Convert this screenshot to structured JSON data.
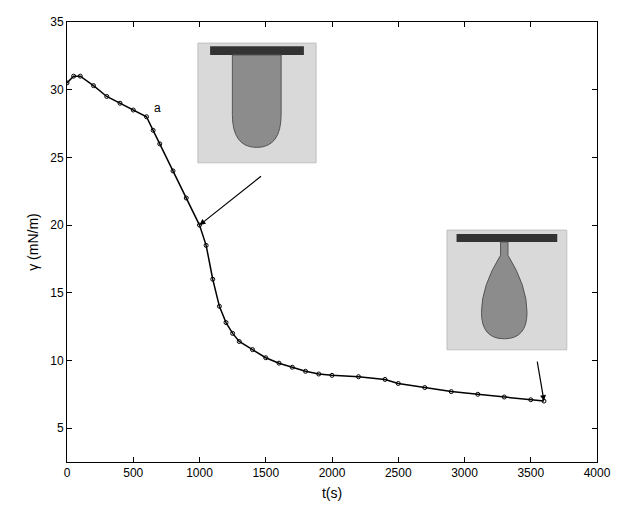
{
  "chart_data": {
    "type": "scatter",
    "x_label": "t(s)",
    "y_label": "γ (mN/m)",
    "x": [
      0,
      50,
      100,
      200,
      300,
      400,
      500,
      600,
      650,
      700,
      800,
      900,
      1000,
      1050,
      1100,
      1150,
      1200,
      1250,
      1300,
      1400,
      1500,
      1600,
      1700,
      1800,
      1900,
      2000,
      2200,
      2400,
      2500,
      2700,
      2900,
      3100,
      3300,
      3500,
      3600
    ],
    "series": [
      {
        "color": "#000000",
        "marker": "circle-open",
        "line_style": "solid",
        "values": [
          30.5,
          31,
          31,
          30.3,
          29.5,
          29,
          28.5,
          28,
          27,
          26,
          24,
          22,
          20,
          18.5,
          16,
          14,
          12.8,
          12,
          11.4,
          10.8,
          10.2,
          9.8,
          9.5,
          9.2,
          9,
          8.9,
          8.8,
          8.6,
          8.3,
          8,
          7.7,
          7.5,
          7.3,
          7.1,
          7.0
        ]
      }
    ],
    "xlim": [
      0,
      4000
    ],
    "xticks": [
      0,
      500,
      1000,
      1500,
      2000,
      2500,
      3000,
      3500,
      4000
    ],
    "ylim": [
      2.5,
      35
    ],
    "yticks": [
      5,
      10,
      15,
      20,
      25,
      30,
      35
    ],
    "grid": false,
    "annotations": [
      {
        "text": "a",
        "x": 640,
        "y": 28
      }
    ]
  }
}
